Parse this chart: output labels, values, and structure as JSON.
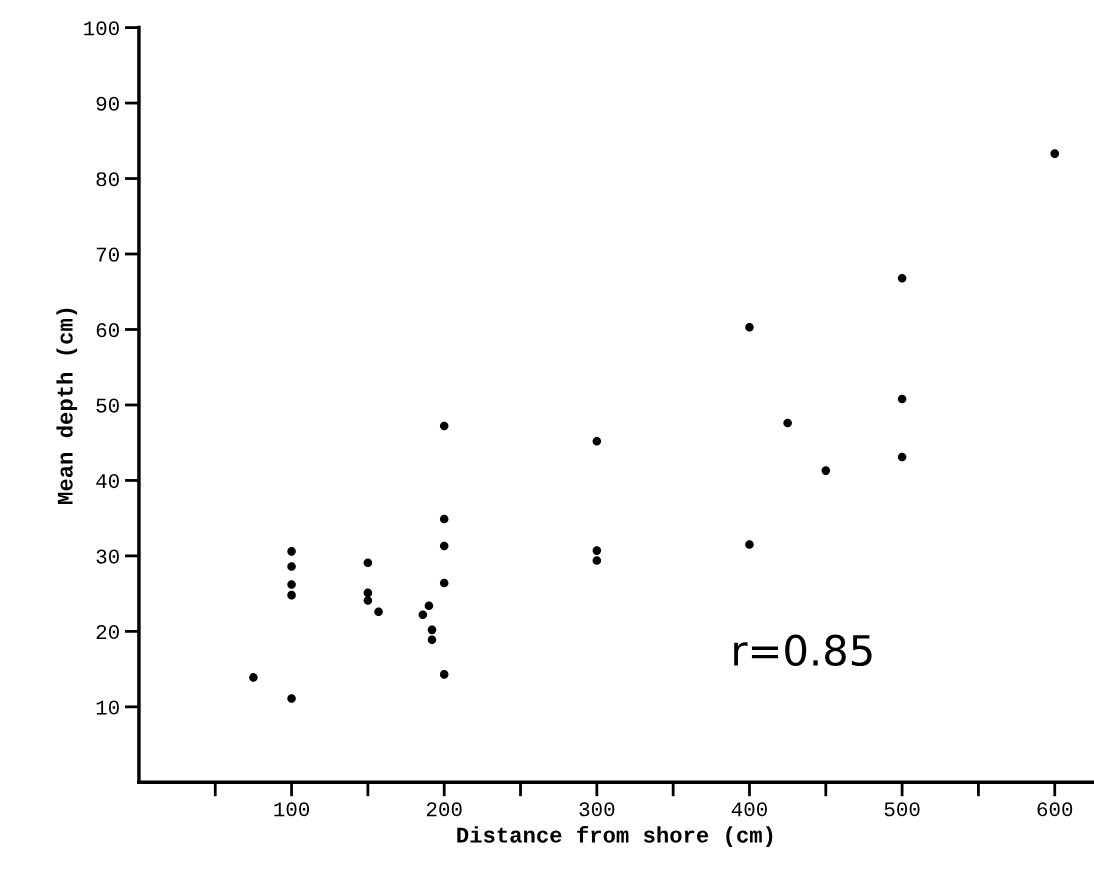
{
  "chart_data": {
    "type": "scatter",
    "xlabel": "Distance from shore (cm)",
    "ylabel": "Mean depth (cm)",
    "x": [
      75,
      100,
      100,
      100,
      100,
      100,
      150,
      150,
      150,
      157,
      190,
      186,
      192,
      192,
      200,
      200,
      200,
      200,
      200,
      300,
      300,
      300,
      400,
      400,
      425,
      450,
      500,
      500,
      500,
      600
    ],
    "series": [
      {
        "color": "#000000",
        "values": [
          13.9,
          11.1,
          30.6,
          28.6,
          26.2,
          24.8,
          29.1,
          25.1,
          24.1,
          22.6,
          23.4,
          22.2,
          20.2,
          18.9,
          47.2,
          34.9,
          31.3,
          26.4,
          14.3,
          45.2,
          30.7,
          29.4,
          60.3,
          31.5,
          47.6,
          41.3,
          66.8,
          50.8,
          43.1,
          83.3
        ]
      }
    ],
    "xlim": [
      0,
      625
    ],
    "ylim": [
      0,
      100
    ],
    "xticks": [
      {
        "value": 50,
        "label": null
      },
      100,
      {
        "value": 150,
        "label": null
      },
      200,
      {
        "value": 250,
        "label": null
      },
      300,
      {
        "value": 350,
        "label": null
      },
      400,
      {
        "value": 450,
        "label": null
      },
      500,
      {
        "value": 550,
        "label": null
      },
      600
    ],
    "yticks": [
      10,
      20,
      30,
      40,
      50,
      60,
      70,
      80,
      90,
      100
    ],
    "annotations": [
      "r=0.85"
    ],
    "marker": "circle",
    "grid": false,
    "legend": false
  }
}
